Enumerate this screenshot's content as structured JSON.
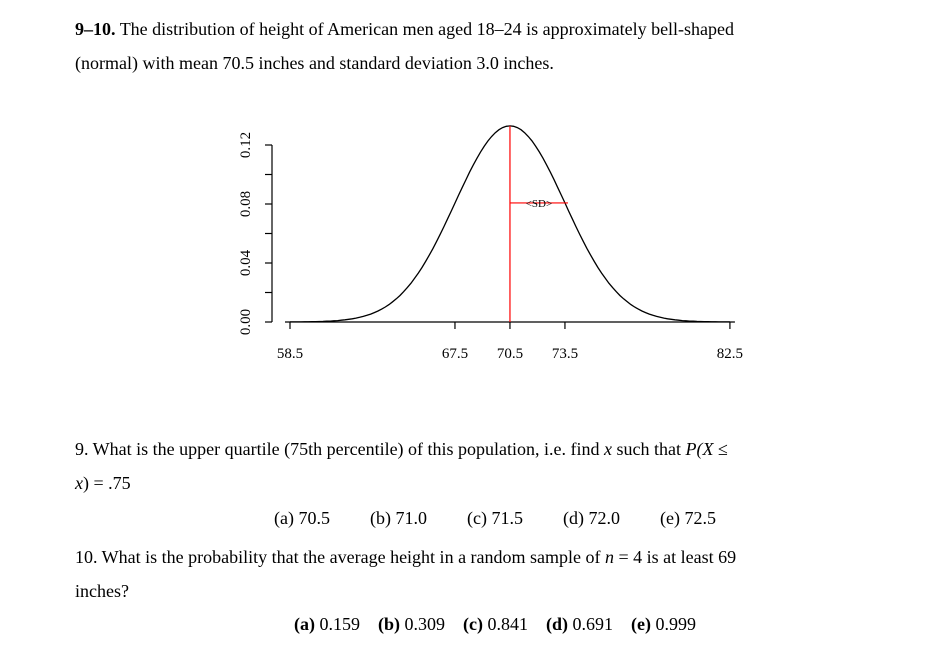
{
  "intro": {
    "line1_number": "9–10.",
    "line1_text": "The distribution of height of American men aged 18–24 is approximately bell-shaped",
    "line2": "(normal) with mean 70.5 inches and standard deviation 3.0 inches."
  },
  "chart_data": {
    "type": "line",
    "description": "Normal (bell-shaped) density curve of heights",
    "mean": 70.5,
    "sd": 3.0,
    "xlim": [
      58.5,
      82.5
    ],
    "ylim": [
      0,
      0.133
    ],
    "x_ticks": [
      "58.5",
      "67.5",
      "70.5",
      "73.5",
      "82.5"
    ],
    "x_tick_values": [
      58.5,
      67.5,
      70.5,
      73.5,
      82.5
    ],
    "y_ticks": [
      "0.00",
      "0.04",
      "0.08",
      "0.12"
    ],
    "y_tick_values": [
      0.0,
      0.04,
      0.08,
      0.12
    ],
    "y_minor_step": 0.02,
    "grid": false,
    "curve_color": "#000000",
    "mean_line": {
      "x": 70.5,
      "color": "#ff0000"
    },
    "sd_arrow": {
      "x1": 70.5,
      "x2": 73.5,
      "y": 0.0807,
      "color": "#ff0000",
      "label": "<SD>",
      "label_color": "#3b3bc4"
    }
  },
  "question9": {
    "line1_part1": "9. What is the upper quartile (75th percentile) of this population, i.e. find ",
    "line1_var": "x",
    "line1_part2": " such that ",
    "line1_math": "P(X",
    "line1_part3": " ≤",
    "line2_var": "x",
    "line2_rest": ") = .75",
    "options": [
      {
        "label": "(a)",
        "value": "70.5"
      },
      {
        "label": "(b)",
        "value": "71.0"
      },
      {
        "label": "(c)",
        "value": "71.5"
      },
      {
        "label": "(d)",
        "value": "72.0"
      },
      {
        "label": "(e)",
        "value": "72.5"
      }
    ]
  },
  "question10": {
    "line1_part1": "10. What is the probability that the average height in a random sample of ",
    "line1_var": "n",
    "line1_part2": " = 4 is at least 69",
    "line2": "inches?",
    "options": [
      {
        "label": "(a)",
        "value": "0.159"
      },
      {
        "label": "(b)",
        "value": "0.309"
      },
      {
        "label": "(c)",
        "value": "0.841"
      },
      {
        "label": "(d)",
        "value": "0.691"
      },
      {
        "label": "(e)",
        "value": "0.999"
      }
    ]
  }
}
